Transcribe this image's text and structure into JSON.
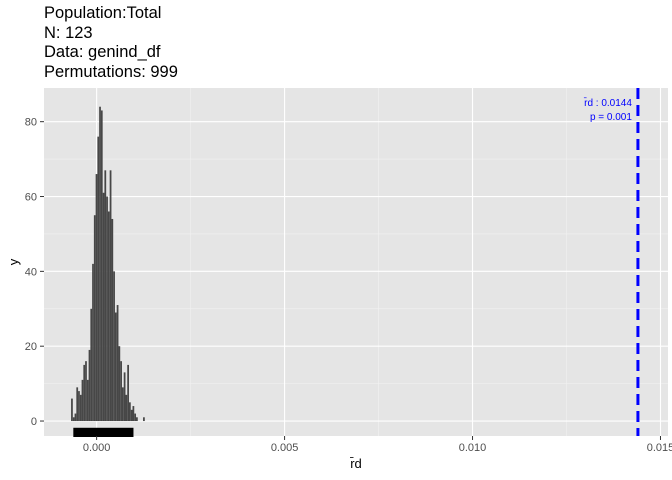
{
  "header": {
    "lines": [
      "Population:Total",
      "N: 123",
      "Data: genind_df",
      "Permutations: 999"
    ]
  },
  "chart_data": {
    "type": "histogram",
    "xlabel": "r̄d",
    "ylabel": "y",
    "xlim": [
      -0.0014,
      0.0152
    ],
    "ylim": [
      -4,
      89
    ],
    "x_ticks": [
      0.0,
      0.005,
      0.01,
      0.015
    ],
    "x_tick_labels": [
      "0.000",
      "0.005",
      "0.010",
      "0.015"
    ],
    "y_ticks": [
      0,
      20,
      40,
      60,
      80
    ],
    "y_tick_labels": [
      "0",
      "20",
      "40",
      "60",
      "80"
    ],
    "grid": true,
    "bar_color": "#474747",
    "panel_color": "#e5e5e5",
    "bins": {
      "start": -0.00068,
      "width": 4.67e-05,
      "counts": [
        6,
        1,
        2,
        9,
        8,
        7,
        11,
        15,
        16,
        11,
        19,
        30,
        42,
        55,
        66,
        76,
        84,
        83,
        61,
        67,
        60,
        56,
        67,
        54,
        40,
        29,
        31,
        20,
        16,
        9,
        13,
        7,
        15,
        5,
        3,
        4,
        2,
        1,
        0,
        0,
        0,
        1
      ]
    },
    "rug": {
      "from": -0.00062,
      "to": 0.00098
    },
    "observed": {
      "value": 0.0144,
      "line_color": "#0000ff",
      "label_stat": "r̄d : 0.0144",
      "label_p": "p = 0.001"
    }
  }
}
